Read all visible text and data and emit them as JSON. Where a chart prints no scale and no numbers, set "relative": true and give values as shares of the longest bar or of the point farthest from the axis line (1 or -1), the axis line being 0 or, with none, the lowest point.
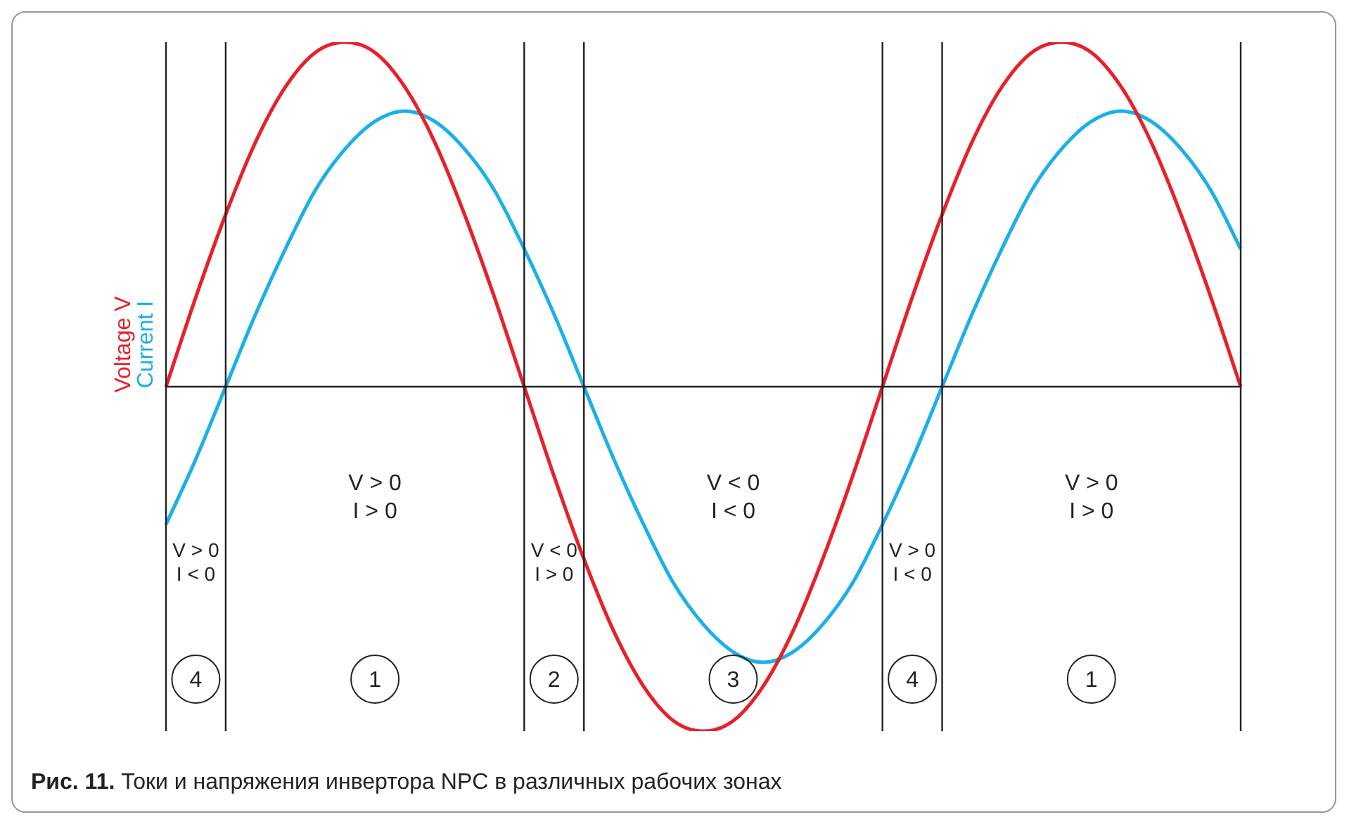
{
  "chart_data": {
    "type": "line",
    "title": "Рис. 11. Токи и напряжения инвертора NPC в различных рабочих зонах",
    "relative": true,
    "legend": false,
    "grid": "x",
    "marker": "none",
    "line_style": "solid",
    "categories": [
      null,
      null,
      null,
      null,
      null,
      null,
      null,
      null,
      null,
      null,
      null,
      null,
      null,
      null,
      null,
      null,
      null,
      null,
      null,
      null,
      null,
      null,
      null,
      null,
      null,
      null,
      null,
      null,
      null,
      null,
      null,
      null,
      null,
      null,
      null,
      null,
      null
    ],
    "series": [
      {
        "name": "Voltage V",
        "color": "#e8202a",
        "values": [
          0,
          0.26,
          0.5,
          0.71,
          0.87,
          0.97,
          1,
          0.97,
          0.87,
          0.71,
          0.5,
          0.26,
          0,
          -0.26,
          -0.5,
          -0.71,
          -0.87,
          -0.97,
          -1,
          -0.97,
          -0.87,
          -0.71,
          -0.5,
          -0.26,
          0,
          0.26,
          0.5,
          0.71,
          0.87,
          0.97,
          1,
          0.97,
          0.87,
          0.71,
          0.5,
          0.26,
          0
        ]
      },
      {
        "name": "Current I",
        "color": "#1ab0e8",
        "values": [
          -0.4,
          -0.21,
          0,
          0.21,
          0.4,
          0.57,
          0.69,
          0.77,
          0.8,
          0.77,
          0.69,
          0.57,
          0.4,
          0.21,
          0,
          -0.21,
          -0.4,
          -0.57,
          -0.69,
          -0.77,
          -0.8,
          -0.77,
          -0.69,
          -0.57,
          -0.4,
          -0.21,
          0,
          0.21,
          0.4,
          0.57,
          0.69,
          0.77,
          0.8,
          0.77,
          0.69,
          0.57,
          0.4
        ]
      }
    ],
    "annotations": [
      "V > 0\nI < 0",
      "V > 0\nI > 0",
      "V < 0\nI > 0",
      "V < 0\nI < 0",
      "V > 0\nI < 0",
      "V > 0\nI > 0",
      "4",
      "1",
      "2",
      "3",
      "4",
      "1"
    ]
  }
}
